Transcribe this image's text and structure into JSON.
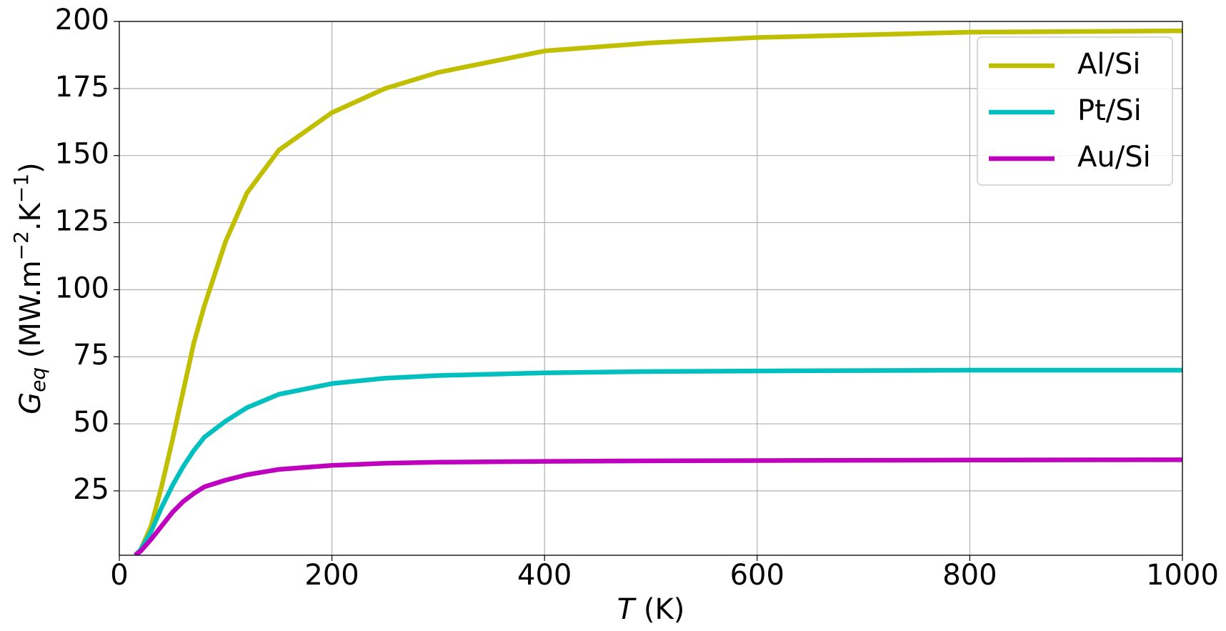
{
  "chart_data": {
    "type": "line",
    "xlabel": [
      "T",
      " (K)"
    ],
    "ylabel": [
      "G",
      "eq",
      " (MW.m",
      "−2",
      ".K",
      "−1",
      ")"
    ],
    "x": [
      15,
      20,
      30,
      40,
      50,
      60,
      70,
      80,
      100,
      120,
      150,
      200,
      250,
      300,
      400,
      500,
      600,
      800,
      1000
    ],
    "series": [
      {
        "name": "Al/Si",
        "color": "#bfbf00",
        "values": [
          1,
          3,
          12,
          27,
          44,
          62,
          80,
          94,
          118,
          136,
          152,
          166,
          175,
          181,
          189,
          192,
          194,
          196,
          196.5
        ]
      },
      {
        "name": "Pt/Si",
        "color": "#00bfbf",
        "values": [
          1,
          3,
          10,
          19,
          27,
          34,
          40,
          45,
          51,
          56,
          61,
          65,
          67,
          68,
          69,
          69.5,
          69.7,
          70,
          70
        ]
      },
      {
        "name": "Au/Si",
        "color": "#bf00bf",
        "values": [
          1,
          2.5,
          7,
          12,
          17,
          21,
          24,
          26.5,
          29,
          31,
          33,
          34.5,
          35.3,
          35.7,
          36,
          36.2,
          36.3,
          36.5,
          36.6
        ]
      }
    ],
    "xlim": [
      0,
      1000
    ],
    "xticks": [
      0,
      200,
      400,
      600,
      800,
      1000
    ],
    "ylim": [
      1,
      200
    ],
    "yticks": [
      25,
      50,
      75,
      100,
      125,
      150,
      175,
      200
    ],
    "grid": true,
    "legend": "upper right"
  }
}
